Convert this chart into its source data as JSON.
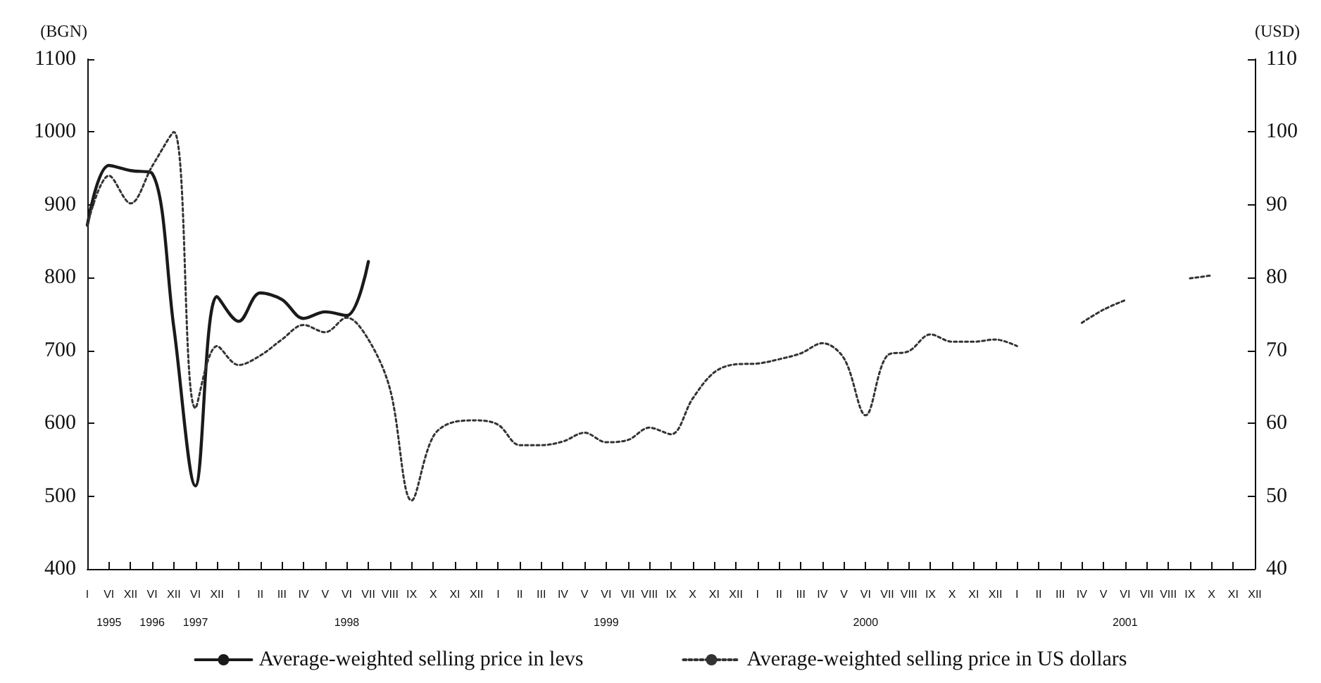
{
  "chart_data": {
    "type": "line",
    "ylabel": "(BGN)",
    "y2label": "(USD)",
    "categories": [
      "I",
      "VI\n1995",
      "XII",
      "VI\n1996",
      "XII",
      "VI\n1997",
      "XII",
      "I",
      "II",
      "III",
      "IV",
      "V",
      "VI\n1998",
      "VII",
      "VIII",
      "IX",
      "X",
      "XI",
      "XII",
      "I",
      "II",
      "III",
      "IV",
      "V",
      "VI\n1999",
      "VII",
      "VIII",
      "IX",
      "X",
      "XI",
      "XII",
      "I",
      "II",
      "III",
      "IV",
      "V",
      "VI\n2000",
      "VII",
      "VIII",
      "IX",
      "X",
      "XI",
      "XII",
      "I",
      "II",
      "III",
      "IV",
      "V",
      "VI\n2001",
      "VII",
      "VIII",
      "IX",
      "X",
      "XI",
      "XII"
    ],
    "series": [
      {
        "name": "Average-weighted selling price in levs",
        "color": "#1a1a1a",
        "line_style": "solid",
        "values": [
          872,
          954,
          947,
          943,
          732,
          514,
          774,
          740,
          779,
          770,
          744,
          753,
          748,
          822,
          null,
          null,
          null,
          null,
          null,
          null,
          null,
          null,
          null,
          null,
          null,
          null,
          null,
          null,
          null,
          null,
          null,
          null,
          null,
          null,
          null,
          null,
          null,
          null,
          null,
          null,
          null,
          null,
          null,
          null,
          null,
          null,
          null,
          null,
          null,
          null,
          null,
          null,
          null,
          null,
          null
        ]
      },
      {
        "name": "Average-weighted selling price in US dollars",
        "color": "#333333",
        "line_style": "dotted",
        "axis": "y2",
        "values": [
          87.2,
          94.0,
          90.2,
          95.3,
          100.0,
          62.1,
          70.6,
          68.0,
          69.3,
          71.5,
          73.5,
          72.5,
          74.5,
          71.5,
          64.7,
          49.4,
          58.2,
          60.2,
          60.4,
          59.8,
          57.0,
          57.0,
          57.5,
          58.7,
          57.4,
          57.7,
          59.4,
          58.5,
          63.4,
          67.0,
          68.1,
          68.2,
          68.8,
          69.6,
          71.0,
          68.9,
          61.1,
          69.3,
          69.9,
          72.2,
          71.2,
          71.2,
          71.5,
          70.6,
          null,
          null,
          73.8,
          75.6,
          76.9,
          null,
          null,
          79.9,
          80.3,
          null,
          null
        ]
      }
    ],
    "ylim": [
      400,
      1100
    ],
    "yticks": [
      400,
      500,
      600,
      700,
      800,
      900,
      1000,
      1100
    ],
    "y2lim": [
      40,
      110
    ],
    "y2ticks": [
      40,
      50,
      60,
      70,
      80,
      90,
      100,
      110
    ],
    "grid": false,
    "legend": "bottom",
    "marker": "none"
  }
}
